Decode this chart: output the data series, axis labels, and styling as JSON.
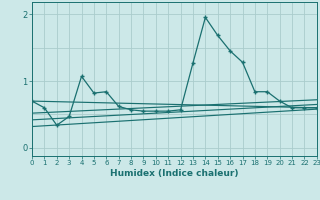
{
  "xlabel": "Humidex (Indice chaleur)",
  "bg_color": "#cce8e8",
  "grid_color": "#aacccc",
  "line_color": "#1a7070",
  "xlim": [
    0,
    23
  ],
  "ylim": [
    -0.12,
    2.18
  ],
  "yticks": [
    0,
    1,
    2
  ],
  "xticks": [
    0,
    1,
    2,
    3,
    4,
    5,
    6,
    7,
    8,
    9,
    10,
    11,
    12,
    13,
    14,
    15,
    16,
    17,
    18,
    19,
    20,
    21,
    22,
    23
  ],
  "curve_x": [
    0,
    1,
    2,
    3,
    4,
    5,
    6,
    7,
    8,
    9,
    10,
    11,
    12,
    13,
    14,
    15,
    16,
    17,
    18,
    19,
    20,
    21,
    22,
    23
  ],
  "curve_y": [
    0.7,
    0.6,
    0.34,
    0.47,
    1.07,
    0.82,
    0.84,
    0.62,
    0.57,
    0.55,
    0.55,
    0.55,
    0.57,
    1.27,
    1.95,
    1.68,
    1.45,
    1.28,
    0.84,
    0.84,
    0.7,
    0.6,
    0.6,
    0.6
  ],
  "trend_lines": [
    {
      "x": [
        0,
        23
      ],
      "y": [
        0.7,
        0.6
      ]
    },
    {
      "x": [
        0,
        23
      ],
      "y": [
        0.52,
        0.72
      ]
    },
    {
      "x": [
        0,
        23
      ],
      "y": [
        0.42,
        0.65
      ]
    },
    {
      "x": [
        0,
        23
      ],
      "y": [
        0.32,
        0.58
      ]
    }
  ]
}
